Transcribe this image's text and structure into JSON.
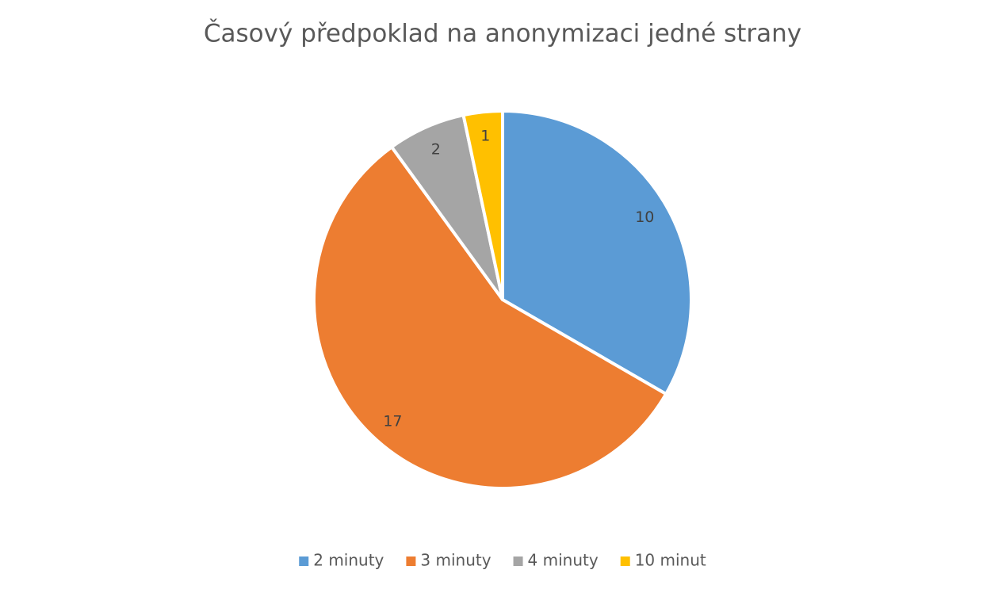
{
  "chart_data": {
    "type": "pie",
    "title": "Časový předpoklad na anonymizaci jedné strany",
    "categories": [
      "2 minuty",
      "3 minuty",
      "4 minuty",
      "10 minut"
    ],
    "values": [
      10,
      17,
      2,
      1
    ],
    "colors": [
      "#5b9bd5",
      "#ed7d31",
      "#a5a5a5",
      "#ffc000"
    ],
    "legend": "bottom"
  }
}
